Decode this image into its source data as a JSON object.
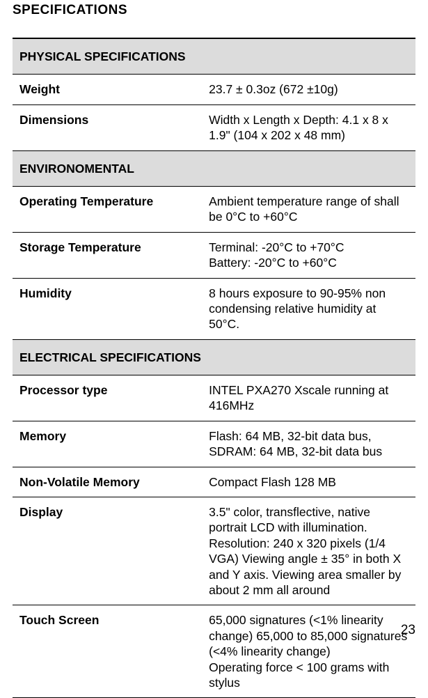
{
  "title": "SPECIFICATIONS",
  "pageNumber": "23",
  "sections": [
    {
      "header": "PHYSICAL SPECIFICATIONS",
      "rows": [
        {
          "label": "Weight",
          "value": " 23.7 ± 0.3oz (672 ±10g)"
        },
        {
          "label": "Dimensions",
          "value": "Width x Length x Depth: 4.1 x 8 x 1.9\" (104 x 202 x 48 mm)"
        }
      ]
    },
    {
      "header": "ENVIRONOMENTAL",
      "rows": [
        {
          "label": "Operating Temperature",
          "value": "Ambient temperature range of shall be  0°C to +60°C"
        },
        {
          "label": "Storage Temperature",
          "value": "Terminal: -20°C to +70°C\nBattery: -20°C to +60°C"
        },
        {
          "label": "Humidity",
          "value": "8 hours exposure to 90-95% non condensing  relative  humidity at 50°C."
        }
      ]
    },
    {
      "header": "ELECTRICAL SPECIFICATIONS",
      "rows": [
        {
          "label": "Processor type",
          "value": "INTEL PXA270 Xscale running at 416MHz"
        },
        {
          "label": "Memory",
          "value": "Flash: 64 MB, 32-bit data bus, SDRAM: 64 MB, 32-bit data bus"
        },
        {
          "label": "Non-Volatile Memory",
          "value": "Compact Flash 128 MB"
        },
        {
          "label": "Display",
          "value": "3.5\" color, transflective, native portrait LCD with illumination. Resolution: 240 x 320 pixels (1/4 VGA) Viewing angle ± 35° in both X and Y axis. Viewing area smaller by about 2 mm all around"
        },
        {
          "label": "Touch Screen",
          "value": "65,000 signatures (<1% linearity change) 65,000 to 85,000 signatures (<4% linearity change)\nOperating force < 100 grams with stylus"
        }
      ]
    }
  ]
}
